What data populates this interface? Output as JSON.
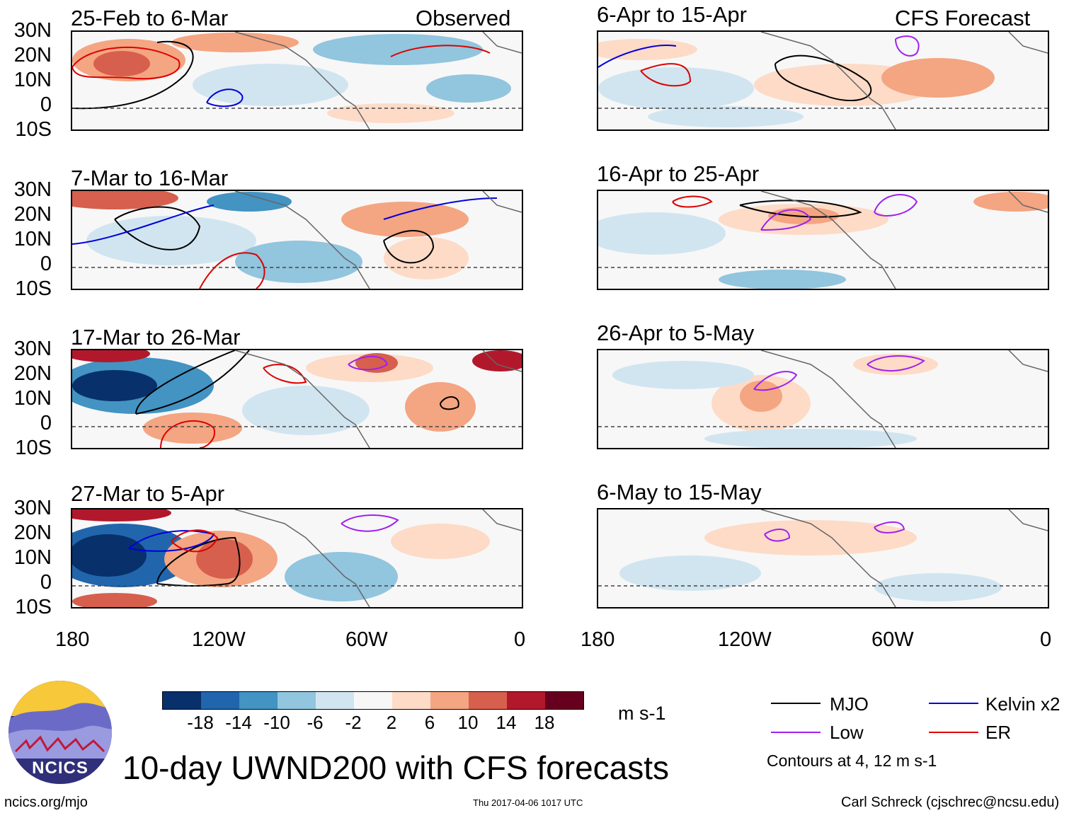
{
  "header": {
    "observed_label": "Observed",
    "forecast_label": "CFS Forecast"
  },
  "panels": {
    "observed": [
      {
        "title": "25-Feb to 6-Mar"
      },
      {
        "title": "7-Mar to 16-Mar"
      },
      {
        "title": "17-Mar to 26-Mar"
      },
      {
        "title": "27-Mar to 5-Apr"
      }
    ],
    "forecast": [
      {
        "title": "6-Apr to 15-Apr"
      },
      {
        "title": "16-Apr to 25-Apr"
      },
      {
        "title": "26-Apr to 5-May"
      },
      {
        "title": "6-May to 15-May"
      }
    ]
  },
  "axes": {
    "lat_ticks": [
      "30N",
      "20N",
      "10N",
      "0",
      "10S"
    ],
    "lon_ticks": [
      "180",
      "120W",
      "60W",
      "0"
    ]
  },
  "colorbar": {
    "unit": "m s-1",
    "ticks": [
      "-18",
      "-14",
      "-10",
      "-6",
      "-2",
      "2",
      "6",
      "10",
      "14",
      "18"
    ],
    "colors": [
      "#08306b",
      "#2166ac",
      "#4393c3",
      "#92c5de",
      "#d1e5f0",
      "#f7f7f7",
      "#fddbc7",
      "#f4a582",
      "#d6604d",
      "#b2182b",
      "#67001f"
    ]
  },
  "legend": {
    "items": [
      {
        "label": "MJO",
        "color": "#000000"
      },
      {
        "label": "Kelvin x2",
        "color": "#0000dd"
      },
      {
        "label": "Low",
        "color": "#a020f0"
      },
      {
        "label": "ER",
        "color": "#dd0000"
      }
    ],
    "note": "Contours at 4, 12 m s-1"
  },
  "footer": {
    "main_title": "10-day UWND200 with CFS forecasts",
    "site": "ncics.org/mjo",
    "timestamp": "Thu 2017-04-06 1017 UTC",
    "author": "Carl Schreck (cjschrec@ncsu.edu)",
    "logo_text": "NCICS"
  },
  "chart_data": {
    "type": "heatmap",
    "variable": "200-hPa zonal wind anomaly, 10-day mean",
    "units": "m s-1",
    "lat_range": [
      -10,
      30
    ],
    "lon_range": [
      -180,
      0
    ],
    "lat_ticks": [
      30,
      20,
      10,
      0,
      -10
    ],
    "lon_ticks": [
      -180,
      -120,
      -60,
      0
    ],
    "levels": [
      -18,
      -14,
      -10,
      -6,
      -2,
      2,
      6,
      10,
      14,
      18
    ],
    "contours_ms1": [
      4,
      12
    ],
    "panels": [
      {
        "title": "25-Feb to 6-Mar",
        "kind": "observed"
      },
      {
        "title": "7-Mar to 16-Mar",
        "kind": "observed"
      },
      {
        "title": "17-Mar to 26-Mar",
        "kind": "observed"
      },
      {
        "title": "27-Mar to 5-Apr",
        "kind": "observed"
      },
      {
        "title": "6-Apr to 15-Apr",
        "kind": "CFS forecast"
      },
      {
        "title": "16-Apr to 25-Apr",
        "kind": "CFS forecast"
      },
      {
        "title": "26-Apr to 5-May",
        "kind": "CFS forecast"
      },
      {
        "title": "6-May to 15-May",
        "kind": "CFS forecast"
      }
    ]
  }
}
